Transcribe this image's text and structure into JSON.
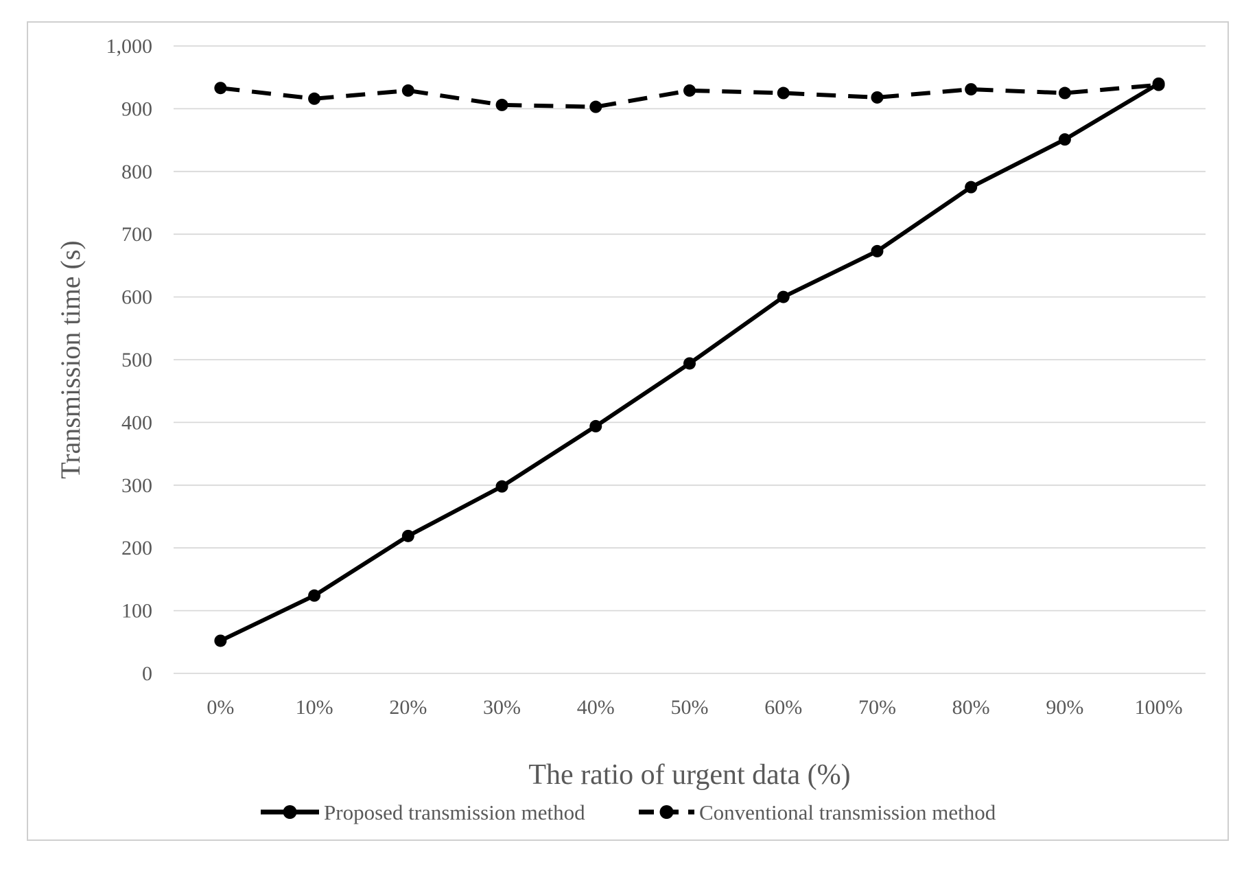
{
  "colors": {
    "series": "#000000",
    "grid": "#d9d9d9",
    "text": "#595959",
    "border": "#cfcfcf",
    "background": "#ffffff"
  },
  "chart_data": {
    "type": "line",
    "title": "",
    "xlabel": "The ratio of urgent data (%)",
    "ylabel": "Transmission time (s)",
    "categories": [
      "0%",
      "10%",
      "20%",
      "30%",
      "40%",
      "50%",
      "60%",
      "70%",
      "80%",
      "90%",
      "100%"
    ],
    "y_tick_labels": [
      "0",
      "100",
      "200",
      "300",
      "400",
      "500",
      "600",
      "700",
      "800",
      "900",
      "1,000"
    ],
    "ylim": [
      0,
      1000
    ],
    "grid": true,
    "legend_position": "bottom",
    "series": [
      {
        "name": "Proposed transmission method",
        "style": "solid",
        "values": [
          52,
          124,
          219,
          298,
          394,
          494,
          600,
          673,
          775,
          851,
          940
        ]
      },
      {
        "name": "Conventional transmission method",
        "style": "dashed",
        "values": [
          933,
          916,
          929,
          906,
          903,
          929,
          925,
          918,
          931,
          925,
          938
        ]
      }
    ]
  }
}
